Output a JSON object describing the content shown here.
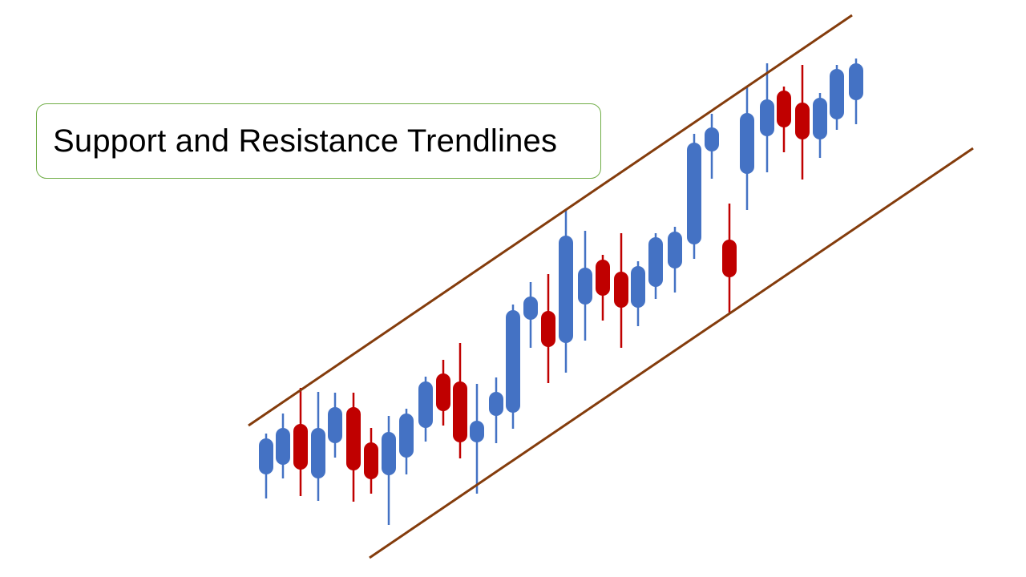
{
  "title": "Support and Resistance Trendlines",
  "colors": {
    "bullish": "#4472C4",
    "bearish": "#C00000",
    "trendline": "#843C0C",
    "title_border": "#70AD47"
  },
  "trendlines": [
    "resistance",
    "support"
  ],
  "candles": [
    "up",
    "up",
    "down",
    "up",
    "up",
    "down",
    "down",
    "up",
    "up",
    "up",
    "down",
    "down",
    "up",
    "up",
    "up",
    "up",
    "down",
    "up",
    "up",
    "down",
    "down",
    "up",
    "up",
    "up",
    "up",
    "up",
    "down",
    "up",
    "up",
    "down",
    "down",
    "up",
    "up",
    "up"
  ]
}
